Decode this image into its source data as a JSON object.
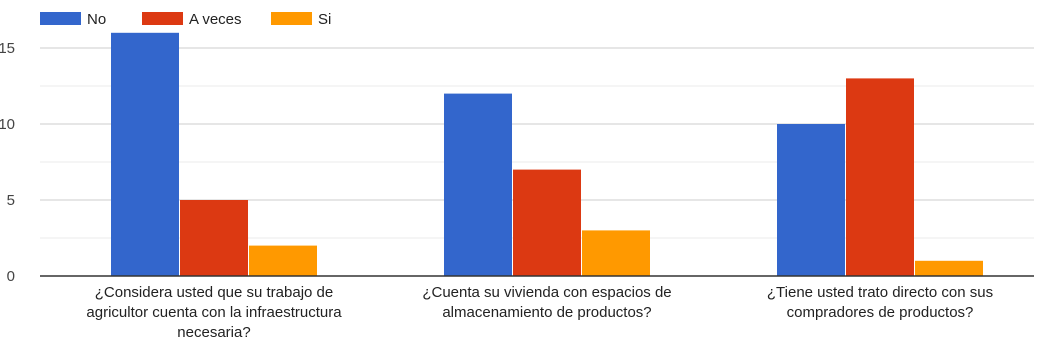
{
  "chart_data": {
    "type": "bar",
    "categories": [
      [
        "¿Considera usted que su trabajo de",
        "agricultor cuenta con la infraestructura",
        "necesaria?"
      ],
      [
        "¿Cuenta su vivienda con espacios de",
        "almacenamiento de productos?"
      ],
      [
        "¿Tiene usted trato directo con sus",
        "compradores de productos?"
      ]
    ],
    "series": [
      {
        "name": "No",
        "color": "#3366cc",
        "values": [
          16,
          12,
          10
        ]
      },
      {
        "name": "A veces",
        "color": "#dc3912",
        "values": [
          5,
          7,
          13
        ]
      },
      {
        "name": "Si",
        "color": "#ff9900",
        "values": [
          2,
          3,
          1
        ]
      }
    ],
    "yticks": [
      0,
      5,
      10,
      15
    ],
    "ylim": [
      0,
      17
    ],
    "grid": true,
    "legend_position": "top-left"
  }
}
